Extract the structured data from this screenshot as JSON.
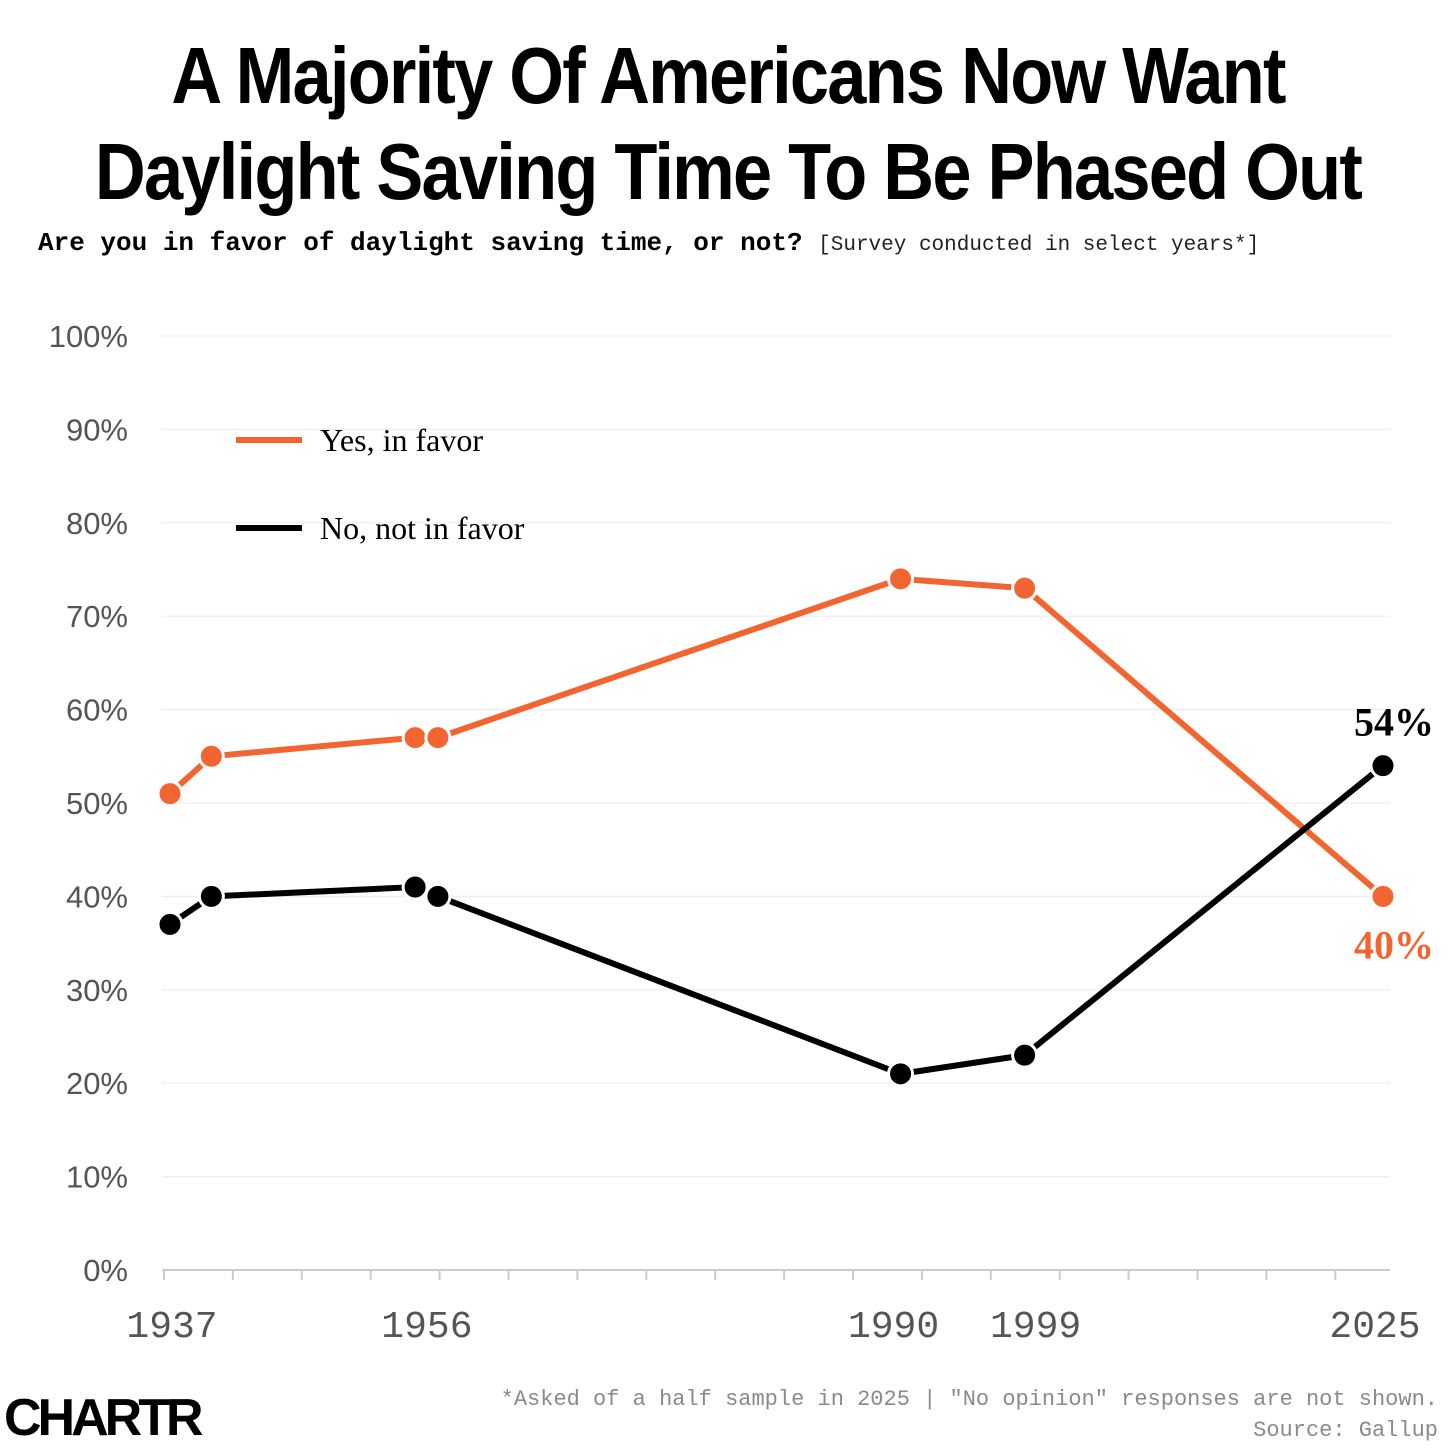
{
  "title_line1": "A Majority Of Americans Now Want",
  "title_line2": "Daylight Saving Time To Be Phased Out",
  "subtitle_question": "Are you in favor of daylight saving time, or not?",
  "subtitle_note": "[Survey conducted in select years*]",
  "footnote_line1": "*Asked of a half sample in 2025 | \"No opinion\" responses are not shown.",
  "footnote_line2": "Source: Gallup",
  "logo_text": "CHARTR",
  "colors": {
    "yes": "#f26430",
    "no": "#000000",
    "grid": "#eeeeee",
    "axis_text": "#555555"
  },
  "chart_data": {
    "type": "line",
    "title": "A Majority Of Americans Now Want Daylight Saving Time To Be Phased Out",
    "xlabel": "",
    "ylabel": "",
    "xlim": [
      1937,
      2025
    ],
    "ylim": [
      0,
      100
    ],
    "y_ticks": [
      "0%",
      "10%",
      "20%",
      "30%",
      "40%",
      "50%",
      "60%",
      "70%",
      "80%",
      "90%",
      "100%"
    ],
    "x_tick_labels": [
      "1937",
      "1956",
      "1990",
      "1999",
      "2025"
    ],
    "x_tick_label_years": [
      1937,
      1956,
      1990,
      1999,
      2025
    ],
    "legend_position": "top-left",
    "series": [
      {
        "name": "Yes, in favor",
        "color": "#f26430",
        "x": [
          1937,
          1940,
          1955,
          1956,
          1990,
          1999,
          2025
        ],
        "values": [
          51,
          55,
          57,
          57,
          74,
          73,
          40
        ],
        "end_label": "40%"
      },
      {
        "name": "No, not in favor",
        "color": "#000000",
        "x": [
          1937,
          1940,
          1955,
          1956,
          1990,
          1999,
          2025
        ],
        "values": [
          37,
          40,
          41,
          40,
          21,
          23,
          54
        ],
        "end_label": "54%"
      }
    ]
  }
}
